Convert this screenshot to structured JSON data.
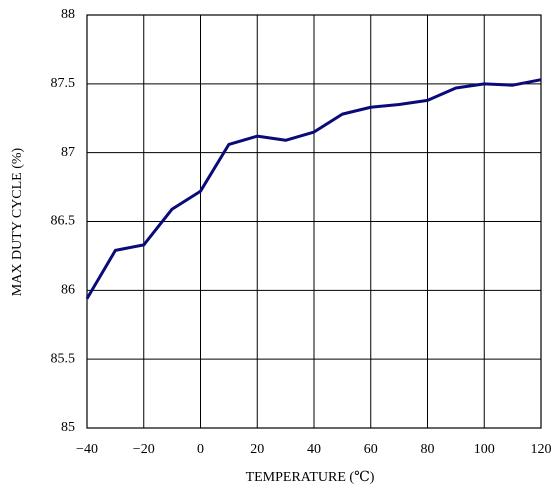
{
  "chart_data": {
    "type": "line",
    "x_label": "TEMPERATURE (℃)",
    "y_label": "MAX DUTY CYCLE (%)",
    "x": [
      -40,
      -30,
      -20,
      -10,
      0,
      10,
      20,
      30,
      40,
      50,
      60,
      70,
      80,
      90,
      100,
      110,
      120
    ],
    "series": [
      {
        "name": "Max duty cycle",
        "color": "#0a0a78",
        "values": [
          85.94,
          86.29,
          86.33,
          86.59,
          86.72,
          87.06,
          87.12,
          87.09,
          87.15,
          87.28,
          87.33,
          87.35,
          87.38,
          87.47,
          87.5,
          87.49,
          87.53
        ]
      }
    ],
    "xlim": [
      -40,
      120
    ],
    "xticks": [
      {
        "value": -40,
        "label": "−40"
      },
      {
        "value": -20,
        "label": "−20"
      },
      0,
      20,
      40,
      60,
      80,
      100,
      120
    ],
    "ylim": [
      85,
      88
    ],
    "yticks": [
      85,
      85.5,
      86,
      86.5,
      87,
      87.5,
      88
    ],
    "grid": true
  }
}
